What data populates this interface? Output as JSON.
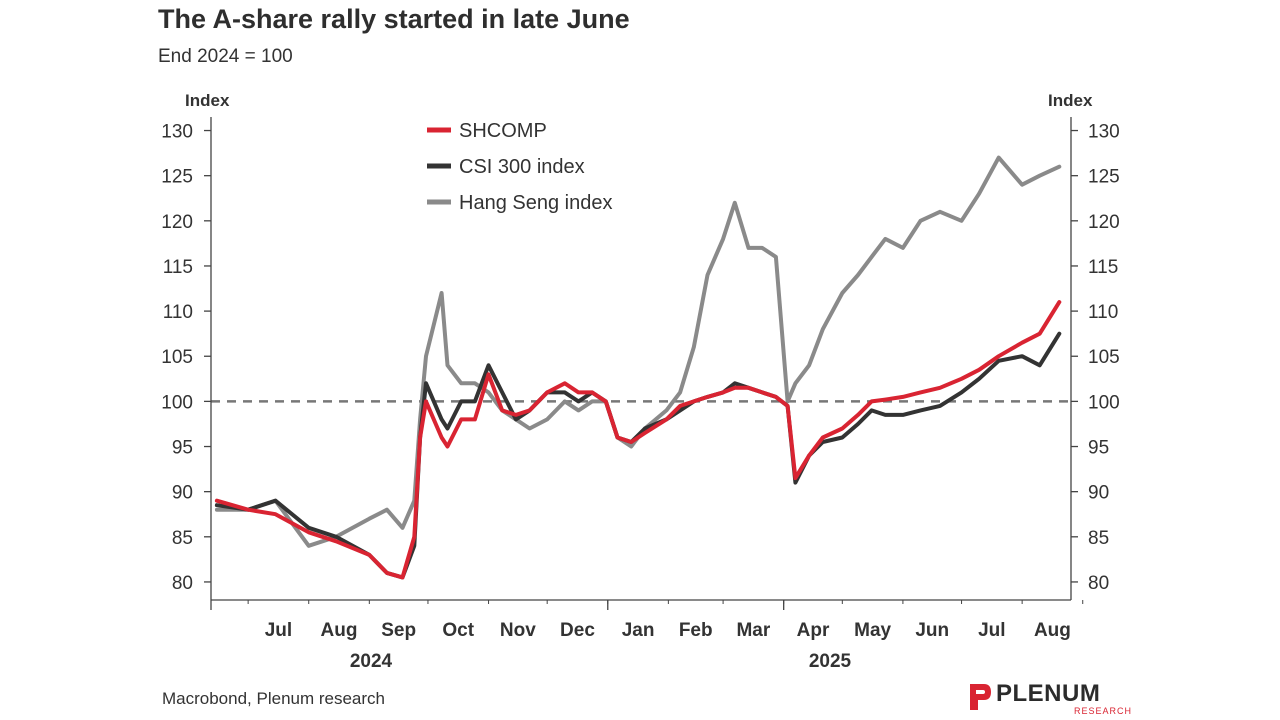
{
  "title": "The A-share rally started in late June",
  "subtitle": "End 2024 = 100",
  "source": "Macrobond, Plenum research",
  "logo": {
    "name": "PLENUM",
    "sub": "RESEARCH"
  },
  "chart_data": {
    "type": "line",
    "ylabel_left": "Index",
    "ylabel_right": "Index",
    "ylim": [
      78,
      131.5
    ],
    "yticks": [
      80,
      85,
      90,
      95,
      100,
      105,
      110,
      115,
      120,
      125,
      130
    ],
    "reference_line": 100,
    "month_labels": [
      "Jul",
      "Aug",
      "Sep",
      "Oct",
      "Nov",
      "Dec",
      "Jan",
      "Feb",
      "Mar",
      "Apr",
      "May",
      "Jun",
      "Jul",
      "Aug"
    ],
    "year_labels": [
      "2024",
      "2025"
    ],
    "x": [
      "2024-06-15",
      "2024-07-01",
      "2024-07-15",
      "2024-08-01",
      "2024-08-15",
      "2024-09-01",
      "2024-09-10",
      "2024-09-18",
      "2024-09-24",
      "2024-09-27",
      "2024-09-30",
      "2024-10-08",
      "2024-10-11",
      "2024-10-18",
      "2024-10-25",
      "2024-11-01",
      "2024-11-08",
      "2024-11-15",
      "2024-11-22",
      "2024-12-01",
      "2024-12-10",
      "2024-12-17",
      "2024-12-24",
      "2024-12-31",
      "2025-01-06",
      "2025-01-13",
      "2025-01-20",
      "2025-01-31",
      "2025-02-07",
      "2025-02-14",
      "2025-02-21",
      "2025-03-01",
      "2025-03-07",
      "2025-03-14",
      "2025-03-21",
      "2025-03-28",
      "2025-04-03",
      "2025-04-07",
      "2025-04-14",
      "2025-04-21",
      "2025-05-01",
      "2025-05-09",
      "2025-05-16",
      "2025-05-23",
      "2025-06-01",
      "2025-06-10",
      "2025-06-20",
      "2025-07-01",
      "2025-07-10",
      "2025-07-20",
      "2025-08-01",
      "2025-08-10",
      "2025-08-20"
    ],
    "series": [
      {
        "name": "SHCOMP",
        "color": "#d92432",
        "values": [
          89,
          88,
          87.5,
          85.5,
          84.5,
          83,
          81,
          80.5,
          85,
          96,
          100,
          96,
          95,
          98,
          98,
          103,
          99,
          98.5,
          99,
          101,
          102,
          101,
          101,
          100,
          96,
          95.5,
          96.5,
          98,
          99.5,
          100,
          100.5,
          101,
          101.5,
          101.5,
          101,
          100.5,
          99.5,
          91.5,
          94,
          96,
          97,
          98.5,
          100,
          100.2,
          100.5,
          101,
          101.5,
          102.5,
          103.5,
          105,
          106.5,
          107.5,
          111
        ]
      },
      {
        "name": "CSI 300 index",
        "color": "#333333",
        "values": [
          88.5,
          88,
          89,
          86,
          85,
          83,
          81,
          80.5,
          84,
          96,
          102,
          98,
          97,
          100,
          100,
          104,
          101,
          98,
          99,
          101,
          101,
          100,
          101,
          100,
          96,
          95.5,
          97,
          98,
          99,
          100,
          100.5,
          101,
          102,
          101.5,
          101,
          100.5,
          99.5,
          91,
          94,
          95.5,
          96,
          97.5,
          99,
          98.5,
          98.5,
          99,
          99.5,
          101,
          102.5,
          104.5,
          105,
          104,
          107.5
        ]
      },
      {
        "name": "Hang Seng index",
        "color": "#8a8a8a",
        "values": [
          88,
          88,
          89,
          84,
          85,
          87,
          88,
          86,
          89,
          98,
          105,
          112,
          104,
          102,
          102,
          101,
          99,
          98,
          97,
          98,
          100,
          99,
          100,
          100,
          96,
          95,
          97,
          99,
          101,
          106,
          114,
          118,
          122,
          117,
          117,
          116,
          100,
          102,
          104,
          108,
          112,
          114,
          116,
          118,
          117,
          120,
          121,
          120,
          123,
          127,
          124,
          125,
          126
        ]
      }
    ]
  }
}
